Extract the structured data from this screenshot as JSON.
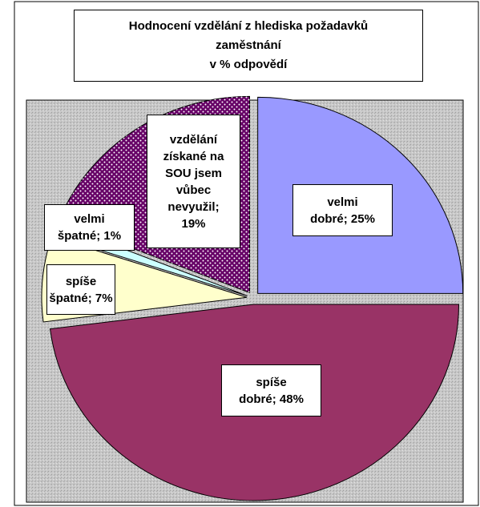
{
  "chart_data": {
    "type": "pie",
    "title": "Hodnocení vzdělání z hlediska požadavků\nzaměstnání\nv % odpovědí",
    "values": [
      25,
      48,
      7,
      1,
      19
    ],
    "value_labels": [
      "velmi\ndobré; 25%",
      "spíše\ndobré; 48%",
      "spíše\nšpatné; 7%",
      "velmi\nšpatné; 1%",
      "vzdělání\nzískané na\nSOU jsem\nvůbec\nnevyužil;\n19%"
    ],
    "colors": [
      "#9999ff",
      "#993366",
      "#ffffcc",
      "#ccffff",
      "#660066"
    ],
    "patterns": [
      "none",
      "none",
      "none",
      "none",
      "dots"
    ]
  }
}
